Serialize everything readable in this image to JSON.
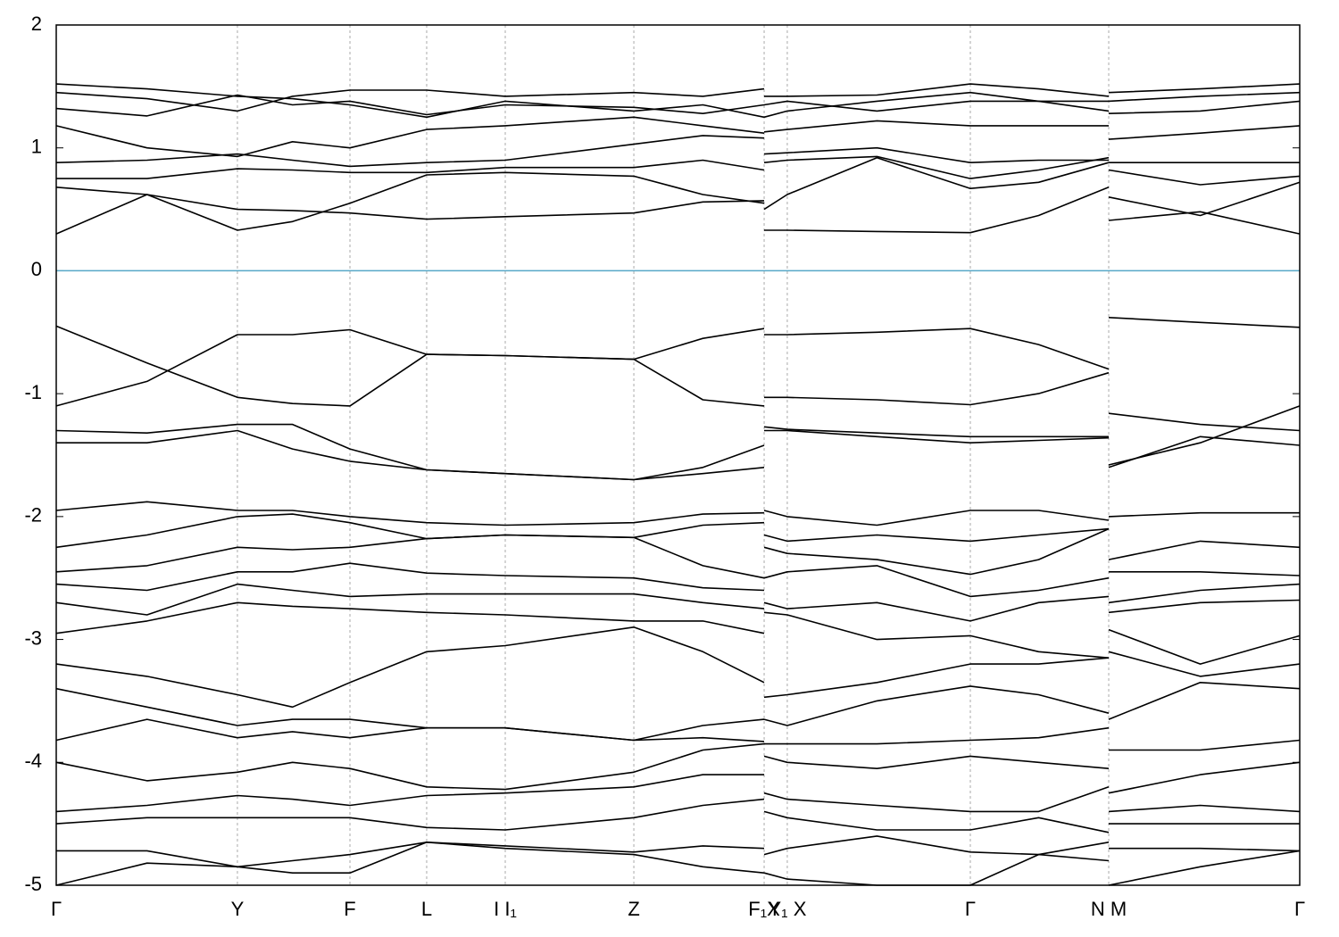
{
  "chart_data": {
    "type": "line",
    "x": [
      0,
      0.073,
      0.1457,
      0.19,
      0.2362,
      0.2979,
      0.3611,
      0.4645,
      0.52,
      0.5693,
      0.5693,
      0.5693,
      0.5879,
      0.66,
      0.7351,
      0.79,
      0.8464,
      0.8464,
      0.8464,
      0.92,
      1
    ],
    "line_color": "#000000",
    "series": [
      {
        "values": [
          0.3,
          0.62,
          0.33,
          0.4,
          0.55,
          0.78,
          0.8,
          0.77,
          0.62,
          0.55,
          null,
          0.33,
          0.33,
          0.32,
          0.31,
          0.45,
          0.68,
          null,
          0.41,
          0.48,
          0.3
        ]
      },
      {
        "values": [
          0.68,
          0.62,
          0.5,
          0.49,
          0.47,
          0.42,
          0.44,
          0.47,
          0.56,
          0.57,
          null,
          0.5,
          0.62,
          0.92,
          0.67,
          0.72,
          0.88,
          null,
          0.6,
          0.45,
          0.72
        ]
      },
      {
        "values": [
          0.75,
          0.75,
          0.83,
          0.82,
          0.8,
          0.8,
          0.84,
          0.84,
          0.9,
          0.82,
          null,
          0.88,
          0.9,
          0.93,
          0.75,
          0.82,
          0.92,
          null,
          0.82,
          0.7,
          0.77
        ]
      },
      {
        "values": [
          0.88,
          0.9,
          0.95,
          0.9,
          0.85,
          0.88,
          0.9,
          1.03,
          1.1,
          1.08,
          null,
          0.95,
          0.96,
          1.0,
          0.88,
          0.9,
          0.9,
          null,
          0.88,
          0.88,
          0.88
        ]
      },
      {
        "values": [
          1.18,
          1.0,
          0.93,
          1.05,
          1.0,
          1.15,
          1.18,
          1.25,
          1.18,
          1.12,
          null,
          1.13,
          1.15,
          1.22,
          1.18,
          1.18,
          1.18,
          null,
          1.07,
          1.12,
          1.18
        ]
      },
      {
        "values": [
          1.32,
          1.26,
          1.43,
          1.35,
          1.38,
          1.27,
          1.35,
          1.33,
          1.28,
          1.35,
          null,
          1.35,
          1.38,
          1.3,
          1.38,
          1.38,
          1.3,
          null,
          1.28,
          1.3,
          1.38
        ]
      },
      {
        "values": [
          1.45,
          1.4,
          1.3,
          1.42,
          1.47,
          1.47,
          1.42,
          1.45,
          1.42,
          1.48,
          null,
          1.42,
          1.42,
          1.43,
          1.52,
          1.48,
          1.42,
          null,
          1.45,
          1.48,
          1.52
        ]
      },
      {
        "values": [
          1.52,
          1.48,
          1.42,
          1.4,
          1.35,
          1.25,
          1.38,
          1.3,
          1.35,
          1.25,
          null,
          1.25,
          1.3,
          1.38,
          1.45,
          1.38,
          1.38,
          null,
          1.38,
          1.42,
          1.45
        ]
      },
      {
        "values": [
          -0.45,
          -0.75,
          -1.03,
          -1.08,
          -1.1,
          -0.68,
          -0.69,
          -0.72,
          -1.05,
          -1.1,
          null,
          -0.52,
          -0.52,
          -0.5,
          -0.47,
          -0.6,
          -0.8,
          null,
          -0.38,
          -0.42,
          -0.46
        ]
      },
      {
        "values": [
          -1.1,
          -0.9,
          -0.52,
          -0.52,
          -0.48,
          -0.68,
          -0.69,
          -0.72,
          -0.55,
          -0.47,
          null,
          -1.03,
          -1.03,
          -1.05,
          -1.09,
          -1.0,
          -0.83,
          null,
          -1.16,
          -1.25,
          -1.3
        ]
      },
      {
        "values": [
          -1.3,
          -1.32,
          -1.25,
          -1.25,
          -1.45,
          -1.62,
          -1.65,
          -1.7,
          -1.6,
          -1.42,
          null,
          -1.27,
          -1.29,
          -1.32,
          -1.35,
          -1.35,
          -1.35,
          null,
          -1.58,
          -1.4,
          -1.1
        ]
      },
      {
        "values": [
          -1.4,
          -1.4,
          -1.3,
          -1.45,
          -1.55,
          -1.62,
          -1.65,
          -1.7,
          -1.65,
          -1.6,
          null,
          -1.3,
          -1.3,
          -1.35,
          -1.4,
          -1.38,
          -1.36,
          null,
          -1.6,
          -1.35,
          -1.42
        ]
      },
      {
        "values": [
          -1.95,
          -1.88,
          -1.95,
          -1.95,
          -2.0,
          -2.05,
          -2.07,
          -2.05,
          -1.98,
          -1.97,
          null,
          -1.95,
          -2.0,
          -2.07,
          -1.95,
          -1.95,
          -2.03,
          null,
          -2.0,
          -1.97,
          -1.97
        ]
      },
      {
        "values": [
          -2.25,
          -2.15,
          -2.0,
          -1.98,
          -2.05,
          -2.18,
          -2.15,
          -2.17,
          -2.07,
          -2.05,
          null,
          -2.15,
          -2.2,
          -2.15,
          -2.2,
          -2.15,
          -2.1,
          null,
          -2.35,
          -2.2,
          -2.25
        ]
      },
      {
        "values": [
          -2.45,
          -2.4,
          -2.25,
          -2.27,
          -2.25,
          -2.18,
          -2.15,
          -2.17,
          -2.4,
          -2.5,
          null,
          -2.25,
          -2.3,
          -2.35,
          -2.47,
          -2.35,
          -2.1,
          null,
          -2.45,
          -2.45,
          -2.48
        ]
      },
      {
        "values": [
          -2.55,
          -2.6,
          -2.45,
          -2.45,
          -2.38,
          -2.46,
          -2.48,
          -2.5,
          -2.58,
          -2.6,
          null,
          -2.5,
          -2.45,
          -2.4,
          -2.65,
          -2.6,
          -2.5,
          null,
          -2.7,
          -2.6,
          -2.55
        ]
      },
      {
        "values": [
          -2.7,
          -2.8,
          -2.55,
          -2.6,
          -2.65,
          -2.63,
          -2.63,
          -2.63,
          -2.7,
          -2.75,
          null,
          -2.7,
          -2.75,
          -2.7,
          -2.85,
          -2.7,
          -2.65,
          null,
          -2.78,
          -2.7,
          -2.68
        ]
      },
      {
        "values": [
          -2.95,
          -2.85,
          -2.7,
          -2.73,
          -2.75,
          -2.78,
          -2.8,
          -2.85,
          -2.85,
          -2.95,
          null,
          -2.78,
          -2.8,
          -3.0,
          -2.97,
          -3.1,
          -3.15,
          null,
          -2.92,
          -3.2,
          -2.97
        ]
      },
      {
        "values": [
          -3.2,
          -3.3,
          -3.45,
          -3.55,
          -3.35,
          -3.1,
          -3.05,
          -2.9,
          -3.1,
          -3.35,
          null,
          -3.47,
          -3.45,
          -3.35,
          -3.2,
          -3.2,
          -3.15,
          null,
          -3.1,
          -3.3,
          -3.2
        ]
      },
      {
        "values": [
          -3.4,
          -3.55,
          -3.7,
          -3.65,
          -3.65,
          -3.72,
          -3.72,
          -3.82,
          -3.7,
          -3.65,
          null,
          -3.65,
          -3.7,
          -3.5,
          -3.38,
          -3.45,
          -3.6,
          null,
          -3.65,
          -3.35,
          -3.4
        ]
      },
      {
        "values": [
          -3.82,
          -3.65,
          -3.8,
          -3.75,
          -3.8,
          -3.72,
          -3.72,
          -3.82,
          -3.8,
          -3.83,
          null,
          -3.85,
          -3.85,
          -3.85,
          -3.82,
          -3.8,
          -3.72,
          null,
          -3.9,
          -3.9,
          -3.82
        ]
      },
      {
        "values": [
          -4.0,
          -4.15,
          -4.08,
          -4.0,
          -4.05,
          -4.2,
          -4.22,
          -4.08,
          -3.9,
          -3.85,
          null,
          -3.95,
          -4.0,
          -4.05,
          -3.95,
          -4.0,
          -4.05,
          null,
          -4.25,
          -4.1,
          -4.0
        ]
      },
      {
        "values": [
          -4.4,
          -4.35,
          -4.27,
          -4.3,
          -4.35,
          -4.27,
          -4.25,
          -4.2,
          -4.1,
          -4.1,
          null,
          -4.25,
          -4.3,
          -4.35,
          -4.4,
          -4.4,
          -4.2,
          null,
          -4.4,
          -4.35,
          -4.4
        ]
      },
      {
        "values": [
          -4.5,
          -4.45,
          -4.45,
          -4.45,
          -4.45,
          -4.53,
          -4.55,
          -4.45,
          -4.35,
          -4.3,
          null,
          -4.4,
          -4.45,
          -4.55,
          -4.55,
          -4.45,
          -4.57,
          null,
          -4.5,
          -4.5,
          -4.5
        ]
      },
      {
        "values": [
          -4.72,
          -4.72,
          -4.85,
          -4.8,
          -4.75,
          -4.65,
          -4.68,
          -4.73,
          -4.68,
          -4.7,
          null,
          -4.75,
          -4.7,
          -4.6,
          -4.73,
          -4.75,
          -4.65,
          null,
          -4.7,
          -4.7,
          -4.72
        ]
      },
      {
        "values": [
          -5.0,
          -4.82,
          -4.85,
          -4.9,
          -4.9,
          -4.65,
          -4.7,
          -4.75,
          -4.85,
          -4.9,
          null,
          -4.9,
          -4.95,
          -5.0,
          -5.0,
          -4.75,
          -4.8,
          null,
          -5.0,
          -4.85,
          -4.72
        ]
      }
    ],
    "fermi_level": {
      "value": 0,
      "color": "#56a8c8"
    },
    "xlim": [
      0,
      1
    ],
    "xticks": [
      {
        "value": 0,
        "label": "Γ"
      },
      {
        "value": 0.1457,
        "label": "Y"
      },
      {
        "value": 0.2362,
        "label": "F"
      },
      {
        "value": 0.2979,
        "label": "L"
      },
      {
        "value": 0.3611,
        "label": "I I₁"
      },
      {
        "value": 0.4645,
        "label": "Z"
      },
      {
        "value": 0.5693,
        "label": "F₁X"
      },
      {
        "value": 0.5879,
        "label": "Y₁ X"
      },
      {
        "value": 0.7351,
        "label": "Γ"
      },
      {
        "value": 0.8464,
        "label": "N M"
      },
      {
        "value": 1,
        "label": "Γ"
      }
    ],
    "ylim": [
      -5,
      2
    ],
    "yticks": [
      -5,
      -4,
      -3,
      -2,
      -1,
      0,
      1,
      2
    ],
    "grid": "x"
  }
}
